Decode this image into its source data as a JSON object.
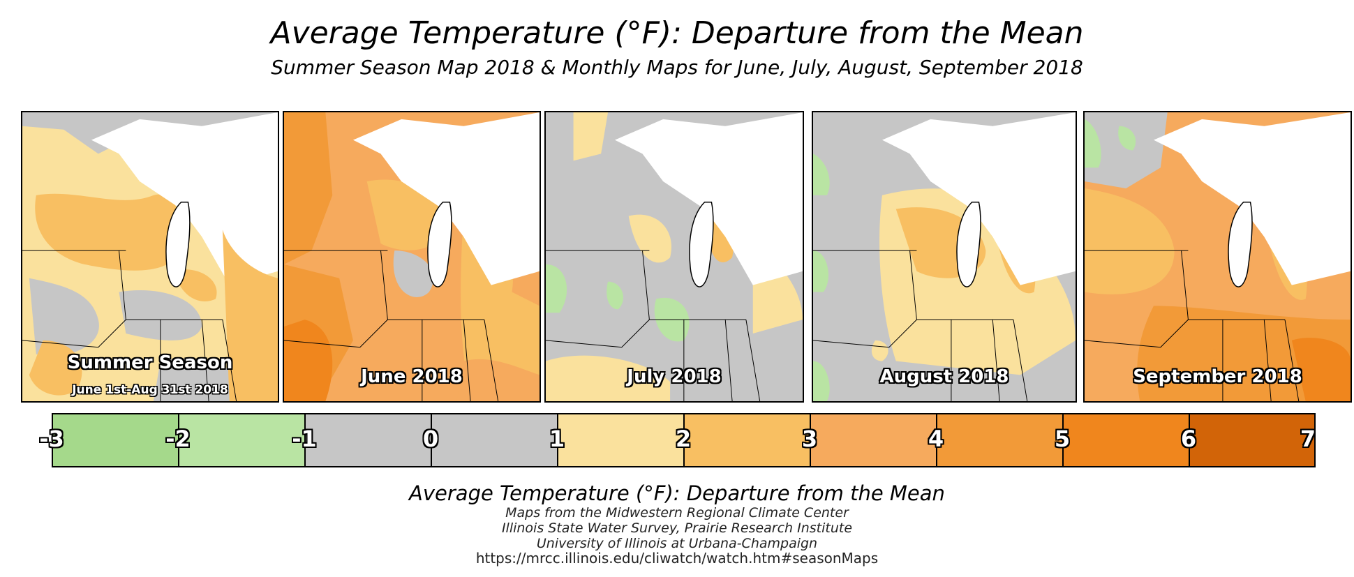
{
  "header": {
    "title": "Average Temperature (°F): Departure from the Mean",
    "subtitle": "Summer Season Map 2018 & Monthly Maps for June, July, August, September 2018"
  },
  "panels": [
    {
      "label": "Summer Season",
      "sublabel": "June 1st-Aug 31st 2018",
      "dominant_class": "1 to 2"
    },
    {
      "label": "June 2018",
      "sublabel": "",
      "dominant_class": "2 to 4"
    },
    {
      "label": "July 2018",
      "sublabel": "",
      "dominant_class": "-1 to 1"
    },
    {
      "label": "August 2018",
      "sublabel": "",
      "dominant_class": "1 to 3"
    },
    {
      "label": "September 2018",
      "sublabel": "",
      "dominant_class": "3 to 5"
    }
  ],
  "legend": {
    "ticks": [
      "-3",
      "-2",
      "-1",
      "0",
      "1",
      "2",
      "3",
      "4",
      "5",
      "6",
      "7"
    ],
    "classes": [
      {
        "range": "-3 to -2",
        "color": "#a5d98b"
      },
      {
        "range": "-2 to -1",
        "color": "#b9e4a3"
      },
      {
        "range": "-1 to 0",
        "color": "#c6c6c6"
      },
      {
        "range": "0 to 1",
        "color": "#c6c6c6"
      },
      {
        "range": "1 to 2",
        "color": "#fae19d"
      },
      {
        "range": "2 to 3",
        "color": "#f8bf62"
      },
      {
        "range": "3 to 4",
        "color": "#f6aa5d"
      },
      {
        "range": "4 to 5",
        "color": "#f29a38"
      },
      {
        "range": "5 to 6",
        "color": "#f0861d"
      },
      {
        "range": "6 to 7",
        "color": "#d26408"
      }
    ]
  },
  "footer": {
    "title": "Average Temperature (°F): Departure from the Mean",
    "lines": [
      "Maps from the Midwestern Regional Climate Center",
      "Illinois State Water Survey, Prairie Research Institute",
      "University of Illinois at Urbana-Champaign"
    ],
    "url": "https://mrcc.illinois.edu/cliwatch/watch.htm#seasonMaps"
  },
  "colors": {
    "lake": "#ffffff",
    "border": "#000000"
  }
}
